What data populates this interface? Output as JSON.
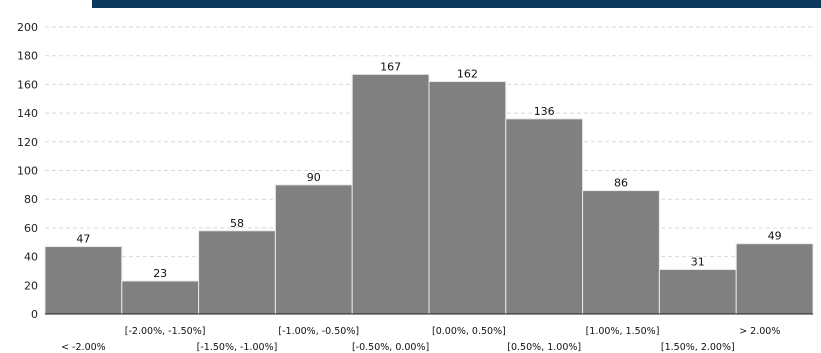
{
  "colors": {
    "bar": "#808080",
    "bar_edge": "#e8e8e8",
    "grid": "#d9d9d9",
    "axis": "#222222",
    "header_band": "#0d3a5c",
    "header_tab": "#ffffff"
  },
  "chart_data": {
    "type": "bar",
    "categories": [
      "< -2.00%",
      "[-2.00%, -1.50%]",
      "[-1.50%, -1.00%]",
      "[-1.00%, -0.50%]",
      "[-0.50%, 0.00%]",
      "[0.00%, 0.50%]",
      "[0.50%, 1.00%]",
      "[1.00%, 1.50%]",
      "[1.50%, 2.00%]",
      "> 2.00%"
    ],
    "values": [
      47,
      23,
      58,
      90,
      167,
      162,
      136,
      86,
      31,
      49
    ],
    "data_labels": [
      "47",
      "23",
      "58",
      "90",
      "167",
      "162",
      "136",
      "86",
      "31",
      "49"
    ],
    "y_ticks": [
      "0",
      "20",
      "40",
      "60",
      "80",
      "100",
      "120",
      "140",
      "160",
      "180",
      "200"
    ],
    "ylim": [
      0,
      200
    ],
    "grid": true,
    "gridline_style": "dashed horizontal",
    "title": "",
    "xlabel": "",
    "ylabel": ""
  }
}
